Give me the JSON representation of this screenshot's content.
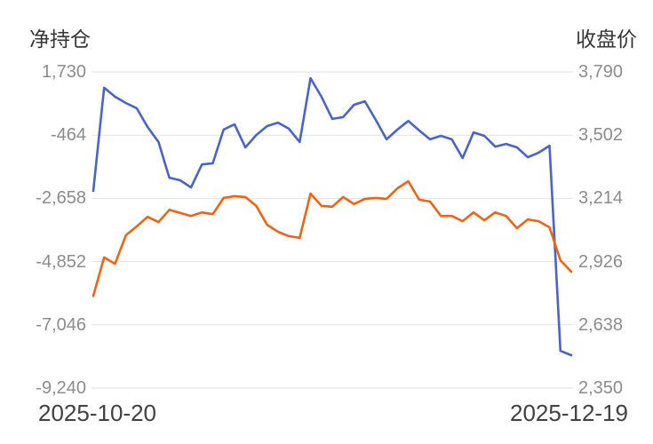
{
  "chart_data": {
    "type": "line",
    "title": "",
    "legend": "none",
    "grid": "horizontal",
    "colors": {
      "net_position": "#4a64c3",
      "close_price": "#ec6414",
      "grid": "#e2e2e2",
      "tick_text": "#8c8c8c",
      "title_text": "#363636",
      "date_text": "#414141"
    },
    "x_axis": {
      "start_label": "2025-10-20",
      "end_label": "2025-12-19"
    },
    "x": [
      "2025-10-20",
      "2025-10-21",
      "2025-10-22",
      "2025-10-23",
      "2025-10-24",
      "2025-10-27",
      "2025-10-28",
      "2025-10-29",
      "2025-10-30",
      "2025-10-31",
      "2025-11-03",
      "2025-11-04",
      "2025-11-05",
      "2025-11-06",
      "2025-11-07",
      "2025-11-10",
      "2025-11-11",
      "2025-11-12",
      "2025-11-13",
      "2025-11-14",
      "2025-11-17",
      "2025-11-18",
      "2025-11-19",
      "2025-11-20",
      "2025-11-21",
      "2025-11-24",
      "2025-11-25",
      "2025-11-26",
      "2025-11-27",
      "2025-11-28",
      "2025-12-01",
      "2025-12-02",
      "2025-12-03",
      "2025-12-04",
      "2025-12-05",
      "2025-12-08",
      "2025-12-09",
      "2025-12-10",
      "2025-12-11",
      "2025-12-12",
      "2025-12-15",
      "2025-12-16",
      "2025-12-17",
      "2025-12-18",
      "2025-12-19"
    ],
    "axes": {
      "left": {
        "title": "净持仓",
        "min": -9240,
        "max": 1730,
        "tick_labels": [
          "1,730",
          "-464",
          "-2,658",
          "-4,852",
          "-7,046",
          "-9,240"
        ],
        "tick_values": [
          1730,
          -464,
          -2658,
          -4852,
          -7046,
          -9240
        ]
      },
      "right": {
        "title": "收盘价",
        "min": 2350,
        "max": 3790,
        "tick_labels": [
          "3,790",
          "3,502",
          "3,214",
          "2,926",
          "2,638",
          "2,350"
        ],
        "tick_values": [
          3790,
          3502,
          3214,
          2926,
          2638,
          2350
        ]
      }
    },
    "series": [
      {
        "name": "净持仓",
        "axis": "left",
        "color": "#4a64c3",
        "values": [
          -2400,
          1180,
          870,
          650,
          470,
          -180,
          -700,
          -1940,
          -2030,
          -2280,
          -1480,
          -1440,
          -270,
          -90,
          -890,
          -460,
          -150,
          -30,
          -240,
          -700,
          1510,
          870,
          100,
          160,
          590,
          710,
          70,
          -610,
          -270,
          30,
          -300,
          -610,
          -490,
          -610,
          -1260,
          -370,
          -490,
          -860,
          -770,
          -890,
          -1230,
          -1070,
          -830,
          -7950,
          -8100
        ]
      },
      {
        "name": "收盘价",
        "axis": "right",
        "color": "#ec6414",
        "values": [
          2770,
          2945,
          2916,
          3046,
          3086,
          3130,
          3106,
          3162,
          3148,
          3134,
          3150,
          3142,
          3216,
          3224,
          3220,
          3180,
          3094,
          3062,
          3042,
          3034,
          3236,
          3180,
          3176,
          3220,
          3188,
          3212,
          3216,
          3212,
          3260,
          3292,
          3208,
          3200,
          3134,
          3134,
          3110,
          3150,
          3114,
          3150,
          3134,
          3078,
          3118,
          3110,
          3082,
          2932,
          2880
        ]
      }
    ]
  }
}
